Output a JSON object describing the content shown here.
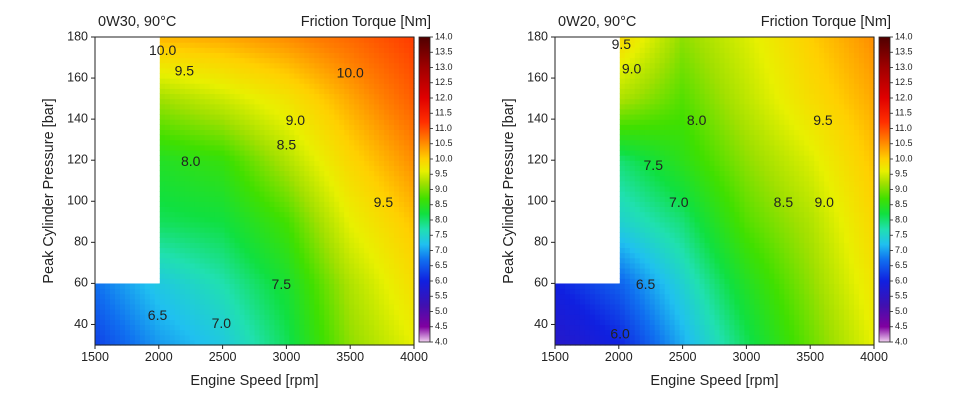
{
  "chart_data": [
    {
      "type": "heatmap",
      "title": "0W30, 90°C",
      "colorbar_title": "Friction Torque [Nm]",
      "xlabel": "Engine Speed [rpm]",
      "ylabel": "Peak Cylinder Pressure [bar]",
      "xlim": [
        1500,
        4000
      ],
      "ylim": [
        30,
        180
      ],
      "xticks": [
        "1500",
        "2000",
        "2500",
        "3000",
        "3500",
        "4000"
      ],
      "yticks": [
        "40",
        "60",
        "80",
        "100",
        "120",
        "140",
        "160",
        "180"
      ],
      "colorbar_range": [
        4.0,
        14.0
      ],
      "colorbar_ticks": [
        "4.0",
        "4.5",
        "5.0",
        "5.5",
        "6.0",
        "6.5",
        "7.0",
        "7.5",
        "8.0",
        "8.5",
        "9.0",
        "9.5",
        "10.0",
        "10.5",
        "11.0",
        "11.5",
        "12.0",
        "12.5",
        "13.0",
        "13.5",
        "14.0"
      ],
      "no_data_region": {
        "x": [
          1500,
          2000
        ],
        "y": [
          60,
          180
        ]
      },
      "x": [
        1500,
        2000,
        2500,
        3000,
        3500,
        4000
      ],
      "y": [
        30,
        60,
        90,
        120,
        150,
        180
      ],
      "z": [
        [
          6.2,
          6.7,
          7.0,
          7.6,
          8.6,
          9.2
        ],
        [
          6.5,
          7.0,
          7.3,
          7.8,
          8.8,
          9.5
        ],
        [
          null,
          7.6,
          7.7,
          8.2,
          9.2,
          9.8
        ],
        [
          null,
          7.9,
          8.1,
          8.8,
          9.6,
          10.2
        ],
        [
          null,
          8.7,
          9.0,
          9.4,
          10.0,
          10.6
        ],
        [
          null,
          9.9,
          10.0,
          10.2,
          10.5,
          10.9
        ]
      ],
      "contour_labels": [
        {
          "text": "10.0",
          "x": 2030,
          "y": 173
        },
        {
          "text": "9.5",
          "x": 2200,
          "y": 163
        },
        {
          "text": "10.0",
          "x": 3500,
          "y": 162
        },
        {
          "text": "9.0",
          "x": 3070,
          "y": 139
        },
        {
          "text": "8.5",
          "x": 3000,
          "y": 127
        },
        {
          "text": "8.0",
          "x": 2250,
          "y": 119
        },
        {
          "text": "9.5",
          "x": 3760,
          "y": 99
        },
        {
          "text": "7.5",
          "x": 2960,
          "y": 59
        },
        {
          "text": "6.5",
          "x": 1990,
          "y": 44
        },
        {
          "text": "7.0",
          "x": 2490,
          "y": 40
        }
      ]
    },
    {
      "type": "heatmap",
      "title": "0W20, 90°C",
      "colorbar_title": "Friction Torque [Nm]",
      "xlabel": "Engine Speed [rpm]",
      "ylabel": "Peak Cylinder Pressure [bar]",
      "xlim": [
        1500,
        4000
      ],
      "ylim": [
        30,
        180
      ],
      "xticks": [
        "1500",
        "2000",
        "2500",
        "3000",
        "3500",
        "4000"
      ],
      "yticks": [
        "40",
        "60",
        "80",
        "100",
        "120",
        "140",
        "160",
        "180"
      ],
      "colorbar_range": [
        4.0,
        14.0
      ],
      "colorbar_ticks": [
        "4.0",
        "4.5",
        "5.0",
        "5.5",
        "6.0",
        "6.5",
        "7.0",
        "7.5",
        "8.0",
        "8.5",
        "9.0",
        "9.5",
        "10.0",
        "10.5",
        "11.0",
        "11.5",
        "12.0",
        "12.5",
        "13.0",
        "13.5",
        "14.0"
      ],
      "no_data_region": {
        "x": [
          1500,
          2000
        ],
        "y": [
          60,
          180
        ]
      },
      "x": [
        1500,
        2000,
        2500,
        3000,
        3500,
        4000
      ],
      "y": [
        30,
        60,
        90,
        120,
        150,
        180
      ],
      "z": [
        [
          5.6,
          6.0,
          6.8,
          7.6,
          8.4,
          9.2
        ],
        [
          6.0,
          6.4,
          7.1,
          7.9,
          8.6,
          9.4
        ],
        [
          null,
          7.1,
          7.5,
          8.3,
          8.8,
          9.6
        ],
        [
          null,
          7.5,
          8.0,
          8.6,
          9.1,
          9.8
        ],
        [
          null,
          8.8,
          8.3,
          8.9,
          9.5,
          10.0
        ],
        [
          null,
          9.6,
          8.6,
          9.1,
          9.7,
          10.2
        ]
      ],
      "contour_labels": [
        {
          "text": "9.5",
          "x": 2020,
          "y": 176
        },
        {
          "text": "9.0",
          "x": 2100,
          "y": 164
        },
        {
          "text": "8.0",
          "x": 2610,
          "y": 139
        },
        {
          "text": "9.5",
          "x": 3600,
          "y": 139
        },
        {
          "text": "7.5",
          "x": 2270,
          "y": 117
        },
        {
          "text": "7.0",
          "x": 2470,
          "y": 99
        },
        {
          "text": "8.5",
          "x": 3290,
          "y": 99
        },
        {
          "text": "9.0",
          "x": 3610,
          "y": 99
        },
        {
          "text": "6.5",
          "x": 2210,
          "y": 59
        },
        {
          "text": "6.0",
          "x": 2010,
          "y": 35
        }
      ]
    }
  ]
}
